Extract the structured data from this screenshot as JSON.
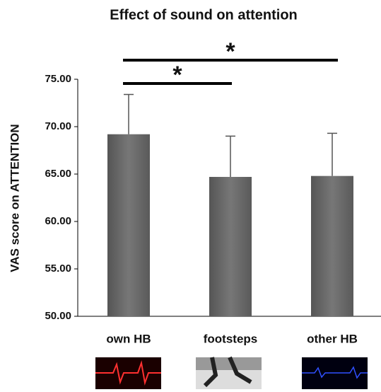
{
  "chart_data": {
    "type": "bar",
    "title": "Effect of sound on attention",
    "y_label": "VAS score on ATTENTION",
    "categories": [
      "own HB",
      "footsteps",
      "other HB"
    ],
    "values": [
      69.2,
      64.7,
      64.8
    ],
    "errors": [
      4.2,
      4.3,
      4.5
    ],
    "color": "#6b6b6b",
    "ylim": [
      50,
      75
    ],
    "yticks": [
      {
        "value": 50,
        "label": "50.00"
      },
      {
        "value": 55,
        "label": "55.00"
      },
      {
        "value": 60,
        "label": "60.00"
      },
      {
        "value": 65,
        "label": "65.00"
      },
      {
        "value": 70,
        "label": "70.00"
      },
      {
        "value": 75,
        "label": "75.00"
      }
    ],
    "significance": [
      {
        "pair": [
          0,
          1
        ],
        "label": "*"
      },
      {
        "pair": [
          0,
          2
        ],
        "label": "*"
      }
    ]
  }
}
